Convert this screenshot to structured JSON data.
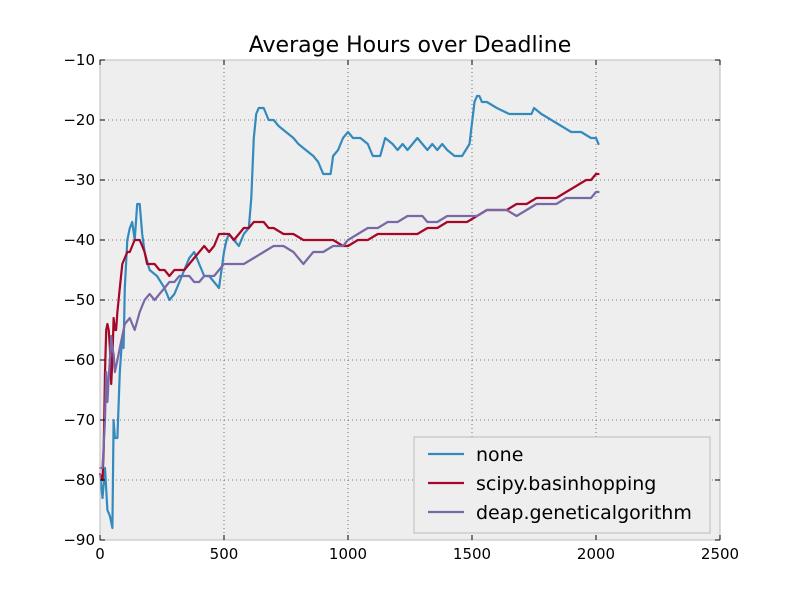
{
  "chart_data": {
    "type": "line",
    "title": "Average Hours over Deadline",
    "xlabel": "",
    "ylabel": "",
    "xlim": [
      0,
      2500
    ],
    "ylim": [
      -90,
      -10
    ],
    "xticks": [
      0,
      500,
      1000,
      1500,
      2000,
      2500
    ],
    "yticks": [
      -90,
      -80,
      -70,
      -60,
      -50,
      -40,
      -30,
      -20,
      -10
    ],
    "xtick_labels": [
      "0",
      "500",
      "1000",
      "1500",
      "2000",
      "2500"
    ],
    "ytick_labels": [
      "−90",
      "−80",
      "−70",
      "−60",
      "−50",
      "−40",
      "−30",
      "−20",
      "−10"
    ],
    "grid": true,
    "legend_position": "lower-right",
    "series": [
      {
        "name": "none",
        "color": "#348ABD",
        "x": [
          0,
          10,
          20,
          30,
          40,
          45,
          50,
          55,
          60,
          70,
          80,
          90,
          95,
          100,
          110,
          120,
          130,
          140,
          150,
          160,
          170,
          180,
          200,
          230,
          260,
          280,
          300,
          320,
          340,
          360,
          380,
          400,
          420,
          440,
          460,
          480,
          490,
          500,
          510,
          520,
          540,
          560,
          580,
          600,
          610,
          620,
          630,
          640,
          650,
          660,
          670,
          680,
          700,
          720,
          750,
          780,
          800,
          830,
          860,
          880,
          900,
          930,
          940,
          960,
          980,
          1000,
          1020,
          1050,
          1080,
          1100,
          1130,
          1150,
          1180,
          1200,
          1220,
          1240,
          1260,
          1280,
          1300,
          1320,
          1340,
          1360,
          1380,
          1400,
          1430,
          1460,
          1490,
          1510,
          1520,
          1530,
          1540,
          1560,
          1600,
          1650,
          1700,
          1740,
          1750,
          1780,
          1820,
          1860,
          1900,
          1940,
          1980,
          2000,
          2010
        ],
        "y": [
          -79,
          -83,
          -78,
          -85,
          -86,
          -87,
          -88,
          -70,
          -73,
          -73,
          -62,
          -56,
          -58,
          -48,
          -40,
          -38,
          -37,
          -40,
          -34,
          -34,
          -39,
          -42,
          -45,
          -46,
          -48,
          -50,
          -49,
          -47,
          -45,
          -43,
          -42,
          -44,
          -46,
          -46,
          -47,
          -48,
          -45,
          -42,
          -40,
          -39,
          -40,
          -41,
          -39,
          -38,
          -33,
          -23,
          -19,
          -18,
          -18,
          -18,
          -19,
          -20,
          -20,
          -21,
          -22,
          -23,
          -24,
          -25,
          -26,
          -27,
          -29,
          -29,
          -26,
          -25,
          -23,
          -22,
          -23,
          -23,
          -24,
          -26,
          -26,
          -23,
          -24,
          -25,
          -24,
          -25,
          -24,
          -23,
          -24,
          -25,
          -24,
          -25,
          -24,
          -25,
          -26,
          -26,
          -24,
          -17,
          -16,
          -16,
          -17,
          -17,
          -18,
          -19,
          -19,
          -19,
          -18,
          -19,
          -20,
          -21,
          -22,
          -22,
          -23,
          -23,
          -24
        ]
      },
      {
        "name": "scipy.basinhopping",
        "color": "#A60628",
        "x": [
          0,
          10,
          15,
          20,
          25,
          30,
          35,
          40,
          45,
          50,
          55,
          60,
          65,
          70,
          80,
          90,
          100,
          110,
          120,
          130,
          140,
          150,
          160,
          170,
          180,
          190,
          200,
          220,
          240,
          260,
          280,
          300,
          320,
          340,
          360,
          380,
          400,
          420,
          440,
          460,
          480,
          500,
          520,
          540,
          560,
          580,
          600,
          620,
          640,
          660,
          680,
          700,
          740,
          780,
          820,
          860,
          900,
          940,
          980,
          1000,
          1040,
          1080,
          1120,
          1160,
          1200,
          1240,
          1280,
          1320,
          1360,
          1400,
          1440,
          1480,
          1520,
          1560,
          1600,
          1640,
          1680,
          1720,
          1760,
          1800,
          1840,
          1880,
          1920,
          1960,
          1980,
          2000,
          2010
        ],
        "y": [
          -79,
          -80,
          -75,
          -62,
          -55,
          -54,
          -55,
          -58,
          -64,
          -60,
          -53,
          -55,
          -55,
          -52,
          -48,
          -44,
          -43,
          -42,
          -42,
          -41,
          -40,
          -40,
          -40,
          -41,
          -42,
          -44,
          -44,
          -44,
          -45,
          -45,
          -46,
          -45,
          -45,
          -45,
          -44,
          -43,
          -42,
          -41,
          -42,
          -41,
          -39,
          -39,
          -39,
          -40,
          -39,
          -38,
          -38,
          -37,
          -37,
          -37,
          -38,
          -38,
          -39,
          -39,
          -40,
          -40,
          -40,
          -40,
          -41,
          -41,
          -40,
          -40,
          -39,
          -39,
          -39,
          -39,
          -39,
          -38,
          -38,
          -37,
          -37,
          -37,
          -36,
          -35,
          -35,
          -35,
          -34,
          -34,
          -33,
          -33,
          -33,
          -32,
          -31,
          -30,
          -30,
          -29,
          -29
        ]
      },
      {
        "name": "deap.geneticalgorithm",
        "color": "#7A68A6",
        "x": [
          0,
          10,
          20,
          25,
          30,
          35,
          40,
          45,
          50,
          55,
          60,
          70,
          80,
          90,
          100,
          120,
          140,
          160,
          180,
          200,
          220,
          240,
          260,
          280,
          300,
          320,
          340,
          360,
          380,
          400,
          420,
          440,
          460,
          480,
          500,
          540,
          580,
          620,
          660,
          700,
          740,
          780,
          800,
          820,
          840,
          860,
          900,
          940,
          980,
          1000,
          1040,
          1080,
          1120,
          1160,
          1200,
          1240,
          1280,
          1300,
          1320,
          1360,
          1400,
          1440,
          1480,
          1520,
          1560,
          1600,
          1640,
          1680,
          1720,
          1760,
          1800,
          1840,
          1880,
          1920,
          1960,
          1980,
          2000,
          2010
        ],
        "y": [
          -78,
          -78,
          -70,
          -62,
          -67,
          -63,
          -60,
          -56,
          -58,
          -59,
          -62,
          -60,
          -58,
          -56,
          -54,
          -53,
          -55,
          -52,
          -50,
          -49,
          -50,
          -49,
          -48,
          -47,
          -47,
          -46,
          -46,
          -46,
          -47,
          -47,
          -46,
          -46,
          -46,
          -45,
          -44,
          -44,
          -44,
          -43,
          -42,
          -41,
          -41,
          -42,
          -43,
          -44,
          -43,
          -42,
          -42,
          -41,
          -41,
          -40,
          -39,
          -38,
          -38,
          -37,
          -37,
          -36,
          -36,
          -36,
          -37,
          -37,
          -36,
          -36,
          -36,
          -36,
          -35,
          -35,
          -35,
          -36,
          -35,
          -34,
          -34,
          -34,
          -33,
          -33,
          -33,
          -33,
          -32,
          -32
        ]
      }
    ]
  }
}
